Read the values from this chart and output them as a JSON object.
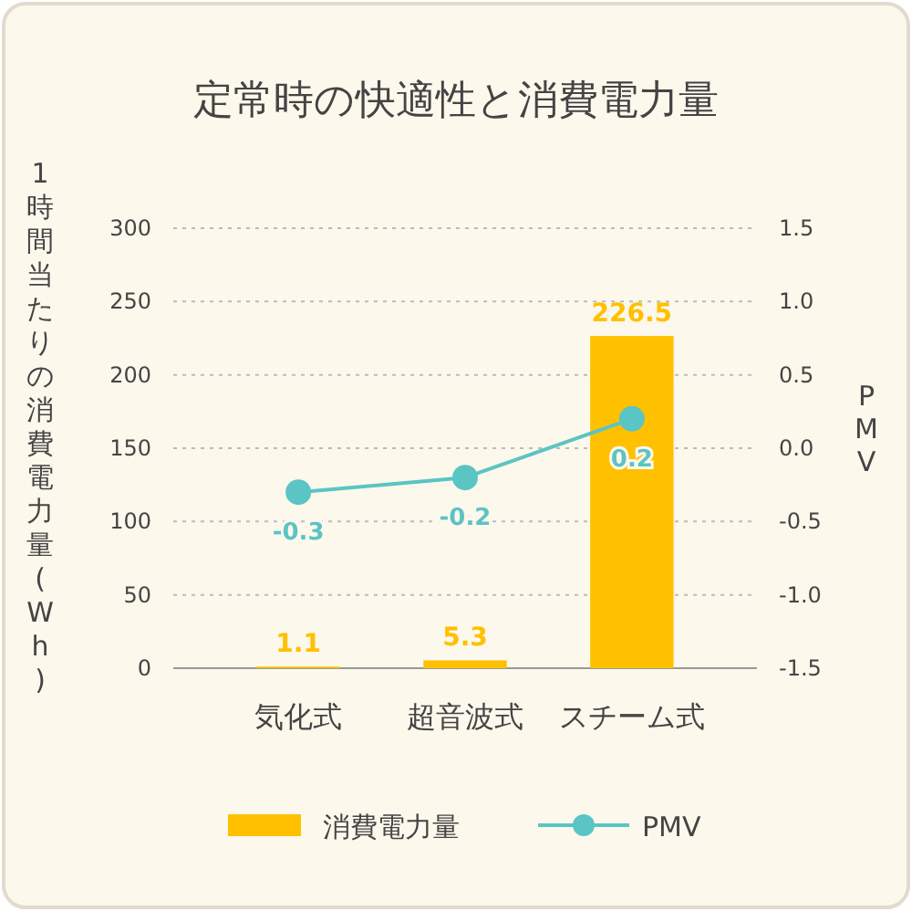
{
  "chart_data": {
    "type": "bar",
    "title": "定常時の快適性と消費電力量",
    "ylabel": "1時間当たりの消費電力量(Wh)",
    "y2label": "PMV",
    "categories": [
      "気化式",
      "超音波式",
      "スチーム式"
    ],
    "series": [
      {
        "name": "消費電力量",
        "color": "#ffc000",
        "values": [
          1.1,
          5.3,
          226.5
        ]
      },
      {
        "name": "PMV",
        "type": "line",
        "axis": "y2",
        "color": "#5bc4c4",
        "marker": "circle",
        "values": [
          -0.3,
          -0.2,
          0.2
        ]
      }
    ],
    "ylim": [
      0,
      300
    ],
    "yticks": [
      0,
      50,
      100,
      150,
      200,
      250,
      300
    ],
    "y2lim": [
      -1.5,
      1.5
    ],
    "y2ticks": [
      {
        "value": -1.5,
        "label": "-1.5"
      },
      {
        "value": -1.0,
        "label": "-1.0"
      },
      {
        "value": -0.5,
        "label": "-0.5"
      },
      {
        "value": 0,
        "label": "0.0"
      },
      {
        "value": 0.5,
        "label": "0.5"
      },
      {
        "value": 1.0,
        "label": "1.0"
      },
      {
        "value": 1.5,
        "label": "1.5"
      }
    ],
    "grid": "y",
    "legend": "bottom",
    "data_labels": true
  }
}
